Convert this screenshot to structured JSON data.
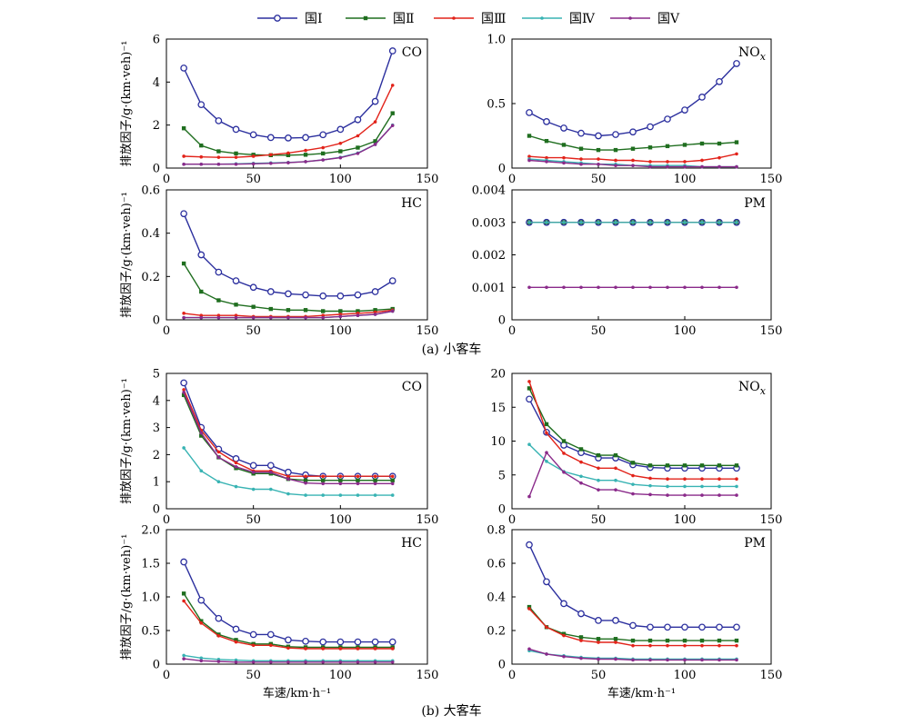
{
  "legend": {
    "entries": [
      {
        "name": "国Ⅰ",
        "color": "#2b2f9e",
        "marker": "circle-open"
      },
      {
        "name": "国Ⅱ",
        "color": "#1f6e1f",
        "marker": "square"
      },
      {
        "name": "国Ⅲ",
        "color": "#e2231a",
        "marker": "dot"
      },
      {
        "name": "国Ⅳ",
        "color": "#38b3b3",
        "marker": "dot"
      },
      {
        "name": "国Ⅴ",
        "color": "#8a2a8a",
        "marker": "dot"
      }
    ]
  },
  "captions": {
    "top": "(a) 小客车",
    "bottom": "(b) 大客车"
  },
  "chart_data": [
    {
      "type": "line",
      "panel": "small-CO",
      "title": "CO",
      "xlabel": "",
      "ylabel": "排放因子/g·(km·veh)⁻¹",
      "xlim": [
        0,
        150
      ],
      "ylim": [
        0,
        6
      ],
      "xticks": [
        "0",
        "50",
        "100",
        "150"
      ],
      "yticks": [
        "0",
        "2",
        "4",
        "6"
      ],
      "x": [
        10,
        20,
        30,
        40,
        50,
        60,
        70,
        80,
        90,
        100,
        110,
        120,
        130
      ],
      "series": [
        {
          "name": "国Ⅰ",
          "values": [
            4.65,
            2.95,
            2.2,
            1.8,
            1.55,
            1.42,
            1.4,
            1.42,
            1.55,
            1.8,
            2.25,
            3.1,
            5.45
          ]
        },
        {
          "name": "国Ⅱ",
          "values": [
            1.85,
            1.05,
            0.78,
            0.68,
            0.62,
            0.6,
            0.6,
            0.62,
            0.68,
            0.78,
            0.95,
            1.25,
            2.55
          ]
        },
        {
          "name": "国Ⅲ",
          "values": [
            0.55,
            0.52,
            0.5,
            0.5,
            0.55,
            0.62,
            0.7,
            0.82,
            0.95,
            1.15,
            1.5,
            2.15,
            3.85
          ]
        },
        {
          "name": "国Ⅳ",
          "values": [
            0.18,
            0.18,
            0.18,
            0.2,
            0.22,
            0.24,
            0.26,
            0.3,
            0.38,
            0.5,
            0.7,
            1.1,
            2.0
          ]
        },
        {
          "name": "国Ⅴ",
          "values": [
            0.18,
            0.18,
            0.18,
            0.18,
            0.2,
            0.22,
            0.25,
            0.3,
            0.38,
            0.48,
            0.68,
            1.1,
            1.98
          ]
        }
      ]
    },
    {
      "type": "line",
      "panel": "small-NOx",
      "title": "NOx",
      "xlabel": "",
      "ylabel": "",
      "xlim": [
        0,
        150
      ],
      "ylim": [
        0,
        1.0
      ],
      "xticks": [
        "0",
        "50",
        "100",
        "150"
      ],
      "yticks": [
        "0",
        "0.5",
        "1.0"
      ],
      "x": [
        10,
        20,
        30,
        40,
        50,
        60,
        70,
        80,
        90,
        100,
        110,
        120,
        130
      ],
      "series": [
        {
          "name": "国Ⅰ",
          "values": [
            0.43,
            0.36,
            0.31,
            0.27,
            0.25,
            0.26,
            0.28,
            0.32,
            0.38,
            0.45,
            0.55,
            0.67,
            0.81
          ]
        },
        {
          "name": "国Ⅱ",
          "values": [
            0.25,
            0.21,
            0.18,
            0.15,
            0.14,
            0.14,
            0.15,
            0.16,
            0.17,
            0.18,
            0.19,
            0.19,
            0.2
          ]
        },
        {
          "name": "国Ⅲ",
          "values": [
            0.09,
            0.08,
            0.08,
            0.07,
            0.07,
            0.06,
            0.06,
            0.05,
            0.05,
            0.05,
            0.06,
            0.08,
            0.11
          ]
        },
        {
          "name": "国Ⅳ",
          "values": [
            0.07,
            0.06,
            0.05,
            0.04,
            0.03,
            0.03,
            0.02,
            0.02,
            0.02,
            0.02,
            0.01,
            0.01,
            0.01
          ]
        },
        {
          "name": "国Ⅴ",
          "values": [
            0.06,
            0.05,
            0.04,
            0.03,
            0.03,
            0.02,
            0.02,
            0.01,
            0.01,
            0.01,
            0.01,
            0.01,
            0.01
          ]
        }
      ]
    },
    {
      "type": "line",
      "panel": "small-HC",
      "title": "HC",
      "xlabel": "",
      "ylabel": "排放因子/g·(km·veh)⁻¹",
      "xlim": [
        0,
        150
      ],
      "ylim": [
        0,
        0.6
      ],
      "xticks": [
        "0",
        "50",
        "100",
        "150"
      ],
      "yticks": [
        "0",
        "0.2",
        "0.4",
        "0.6"
      ],
      "x": [
        10,
        20,
        30,
        40,
        50,
        60,
        70,
        80,
        90,
        100,
        110,
        120,
        130
      ],
      "series": [
        {
          "name": "国Ⅰ",
          "values": [
            0.49,
            0.3,
            0.22,
            0.18,
            0.15,
            0.13,
            0.12,
            0.115,
            0.11,
            0.11,
            0.115,
            0.13,
            0.18
          ]
        },
        {
          "name": "国Ⅱ",
          "values": [
            0.26,
            0.13,
            0.09,
            0.07,
            0.06,
            0.05,
            0.045,
            0.045,
            0.04,
            0.04,
            0.04,
            0.045,
            0.05
          ]
        },
        {
          "name": "国Ⅲ",
          "values": [
            0.03,
            0.02,
            0.02,
            0.02,
            0.015,
            0.015,
            0.015,
            0.015,
            0.02,
            0.025,
            0.03,
            0.035,
            0.045
          ]
        },
        {
          "name": "国Ⅳ",
          "values": [
            0.01,
            0.01,
            0.01,
            0.01,
            0.01,
            0.01,
            0.01,
            0.01,
            0.01,
            0.015,
            0.02,
            0.025,
            0.04
          ]
        },
        {
          "name": "国Ⅴ",
          "values": [
            0.01,
            0.01,
            0.01,
            0.01,
            0.01,
            0.01,
            0.01,
            0.01,
            0.01,
            0.015,
            0.02,
            0.025,
            0.04
          ]
        }
      ]
    },
    {
      "type": "line",
      "panel": "small-PM",
      "title": "PM",
      "xlabel": "",
      "ylabel": "",
      "xlim": [
        0,
        150
      ],
      "ylim": [
        0,
        0.004
      ],
      "xticks": [
        "0",
        "50",
        "100",
        "150"
      ],
      "yticks": [
        "0",
        "0.001",
        "0.002",
        "0.003",
        "0.004"
      ],
      "x": [
        10,
        20,
        30,
        40,
        50,
        60,
        70,
        80,
        90,
        100,
        110,
        120,
        130
      ],
      "series": [
        {
          "name": "国Ⅰ",
          "values": [
            0.003,
            0.003,
            0.003,
            0.003,
            0.003,
            0.003,
            0.003,
            0.003,
            0.003,
            0.003,
            0.003,
            0.003,
            0.003
          ]
        },
        {
          "name": "国Ⅱ",
          "values": [
            0.003,
            0.003,
            0.003,
            0.003,
            0.003,
            0.003,
            0.003,
            0.003,
            0.003,
            0.003,
            0.003,
            0.003,
            0.003
          ]
        },
        {
          "name": "国Ⅲ",
          "values": [
            0.003,
            0.003,
            0.003,
            0.003,
            0.003,
            0.003,
            0.003,
            0.003,
            0.003,
            0.003,
            0.003,
            0.003,
            0.003
          ]
        },
        {
          "name": "国Ⅳ",
          "values": [
            0.003,
            0.003,
            0.003,
            0.003,
            0.003,
            0.003,
            0.003,
            0.003,
            0.003,
            0.003,
            0.003,
            0.003,
            0.003
          ]
        },
        {
          "name": "国Ⅴ",
          "values": [
            0.001,
            0.001,
            0.001,
            0.001,
            0.001,
            0.001,
            0.001,
            0.001,
            0.001,
            0.001,
            0.001,
            0.001,
            0.001
          ]
        }
      ]
    },
    {
      "type": "line",
      "panel": "large-CO",
      "title": "CO",
      "xlabel": "",
      "ylabel": "排放因子/g·(km·veh)⁻¹",
      "xlim": [
        0,
        150
      ],
      "ylim": [
        0,
        5
      ],
      "xticks": [
        "0",
        "50",
        "100",
        "150"
      ],
      "yticks": [
        "0",
        "1",
        "2",
        "3",
        "4",
        "5"
      ],
      "x": [
        10,
        20,
        30,
        40,
        50,
        60,
        70,
        80,
        90,
        100,
        110,
        120,
        130
      ],
      "series": [
        {
          "name": "国Ⅰ",
          "values": [
            4.65,
            3.0,
            2.2,
            1.85,
            1.6,
            1.6,
            1.35,
            1.25,
            1.2,
            1.2,
            1.2,
            1.2,
            1.2
          ]
        },
        {
          "name": "国Ⅱ",
          "values": [
            4.2,
            2.7,
            1.9,
            1.5,
            1.3,
            1.3,
            1.1,
            1.05,
            1.05,
            1.05,
            1.05,
            1.05,
            1.05
          ]
        },
        {
          "name": "国Ⅲ",
          "values": [
            4.4,
            2.9,
            2.1,
            1.7,
            1.4,
            1.4,
            1.2,
            1.2,
            1.2,
            1.2,
            1.2,
            1.2,
            1.2
          ]
        },
        {
          "name": "国Ⅳ",
          "values": [
            2.25,
            1.4,
            1.0,
            0.82,
            0.72,
            0.72,
            0.55,
            0.5,
            0.5,
            0.5,
            0.5,
            0.5,
            0.5
          ]
        },
        {
          "name": "国Ⅴ",
          "values": [
            4.3,
            2.8,
            1.9,
            1.55,
            1.35,
            1.35,
            1.1,
            0.95,
            0.93,
            0.93,
            0.93,
            0.93,
            0.93
          ]
        }
      ]
    },
    {
      "type": "line",
      "panel": "large-NOx",
      "title": "NOx",
      "xlabel": "",
      "ylabel": "",
      "xlim": [
        0,
        150
      ],
      "ylim": [
        0,
        20
      ],
      "xticks": [
        "0",
        "50",
        "100",
        "150"
      ],
      "yticks": [
        "0",
        "5",
        "10",
        "15",
        "20"
      ],
      "x": [
        10,
        20,
        30,
        40,
        50,
        60,
        70,
        80,
        90,
        100,
        110,
        120,
        130
      ],
      "series": [
        {
          "name": "国Ⅰ",
          "values": [
            16.2,
            11.3,
            9.4,
            8.3,
            7.5,
            7.5,
            6.5,
            6.1,
            6.0,
            6.0,
            6.0,
            6.0,
            6.0
          ]
        },
        {
          "name": "国Ⅱ",
          "values": [
            17.8,
            12.5,
            10.0,
            8.8,
            7.9,
            7.9,
            6.8,
            6.4,
            6.4,
            6.4,
            6.4,
            6.4,
            6.4
          ]
        },
        {
          "name": "国Ⅲ",
          "values": [
            18.8,
            11.2,
            8.2,
            6.9,
            6.0,
            6.0,
            4.9,
            4.5,
            4.4,
            4.4,
            4.4,
            4.4,
            4.4
          ]
        },
        {
          "name": "国Ⅳ",
          "values": [
            9.5,
            7.0,
            5.5,
            4.8,
            4.2,
            4.2,
            3.6,
            3.4,
            3.3,
            3.3,
            3.3,
            3.3,
            3.3
          ]
        },
        {
          "name": "国Ⅴ",
          "values": [
            1.8,
            8.3,
            5.4,
            3.8,
            2.8,
            2.8,
            2.2,
            2.1,
            2.0,
            2.0,
            2.0,
            2.0,
            2.0
          ]
        }
      ]
    },
    {
      "type": "line",
      "panel": "large-HC",
      "title": "HC",
      "xlabel": "车速/km·h⁻¹",
      "ylabel": "排放因子/g·(km·veh)⁻¹",
      "xlim": [
        0,
        150
      ],
      "ylim": [
        0,
        2.0
      ],
      "xticks": [
        "0",
        "50",
        "100",
        "150"
      ],
      "yticks": [
        "0",
        "0.5",
        "1.0",
        "1.5",
        "2.0"
      ],
      "x": [
        10,
        20,
        30,
        40,
        50,
        60,
        70,
        80,
        90,
        100,
        110,
        120,
        130
      ],
      "series": [
        {
          "name": "国Ⅰ",
          "values": [
            1.52,
            0.95,
            0.68,
            0.52,
            0.44,
            0.44,
            0.36,
            0.34,
            0.33,
            0.33,
            0.33,
            0.33,
            0.33
          ]
        },
        {
          "name": "国Ⅱ",
          "values": [
            1.05,
            0.64,
            0.44,
            0.36,
            0.3,
            0.3,
            0.26,
            0.25,
            0.25,
            0.25,
            0.25,
            0.25,
            0.25
          ]
        },
        {
          "name": "国Ⅲ",
          "values": [
            0.94,
            0.61,
            0.42,
            0.33,
            0.28,
            0.28,
            0.24,
            0.23,
            0.23,
            0.23,
            0.23,
            0.23,
            0.23
          ]
        },
        {
          "name": "国Ⅳ",
          "values": [
            0.13,
            0.09,
            0.07,
            0.06,
            0.05,
            0.05,
            0.05,
            0.05,
            0.05,
            0.05,
            0.05,
            0.05,
            0.05
          ]
        },
        {
          "name": "国Ⅴ",
          "values": [
            0.08,
            0.05,
            0.04,
            0.03,
            0.03,
            0.03,
            0.03,
            0.03,
            0.03,
            0.03,
            0.03,
            0.03,
            0.03
          ]
        }
      ]
    },
    {
      "type": "line",
      "panel": "large-PM",
      "title": "PM",
      "xlabel": "车速/km·h⁻¹",
      "ylabel": "",
      "xlim": [
        0,
        150
      ],
      "ylim": [
        0,
        0.8
      ],
      "xticks": [
        "0",
        "50",
        "100",
        "150"
      ],
      "yticks": [
        "0",
        "0.2",
        "0.4",
        "0.6",
        "0.8"
      ],
      "x": [
        10,
        20,
        30,
        40,
        50,
        60,
        70,
        80,
        90,
        100,
        110,
        120,
        130
      ],
      "series": [
        {
          "name": "国Ⅰ",
          "values": [
            0.71,
            0.49,
            0.36,
            0.3,
            0.26,
            0.26,
            0.23,
            0.22,
            0.22,
            0.22,
            0.22,
            0.22,
            0.22
          ]
        },
        {
          "name": "国Ⅱ",
          "values": [
            0.34,
            0.22,
            0.18,
            0.16,
            0.15,
            0.15,
            0.14,
            0.14,
            0.14,
            0.14,
            0.14,
            0.14,
            0.14
          ]
        },
        {
          "name": "国Ⅲ",
          "values": [
            0.33,
            0.22,
            0.17,
            0.14,
            0.13,
            0.13,
            0.11,
            0.11,
            0.11,
            0.11,
            0.11,
            0.11,
            0.11
          ]
        },
        {
          "name": "国Ⅳ",
          "values": [
            0.08,
            0.06,
            0.05,
            0.04,
            0.035,
            0.035,
            0.03,
            0.03,
            0.03,
            0.03,
            0.03,
            0.03,
            0.03
          ]
        },
        {
          "name": "国Ⅴ",
          "values": [
            0.09,
            0.06,
            0.045,
            0.035,
            0.03,
            0.03,
            0.025,
            0.025,
            0.025,
            0.025,
            0.025,
            0.025,
            0.025
          ]
        }
      ]
    }
  ]
}
